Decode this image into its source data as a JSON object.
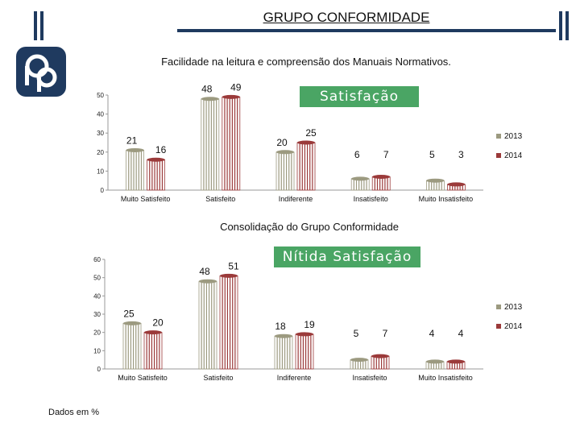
{
  "header": {
    "title": "GRUPO CONFORMIDADE",
    "logo_icon": "pp-logo-icon",
    "colors": {
      "brand": "#1f3a5f",
      "accent": "#4aa564"
    }
  },
  "chart_data": [
    {
      "type": "bar",
      "title": "Facilidade na leitura e compreensão dos Manuais Normativos.",
      "banner": "Satisfação",
      "categories": [
        "Muito Satisfeito",
        "Satisfeito",
        "Indiferente",
        "Insatisfeito",
        "Muito Insatisfeito"
      ],
      "series": [
        {
          "name": "2013",
          "color": "#9c9a80",
          "values": [
            21,
            48,
            20,
            6,
            5
          ]
        },
        {
          "name": "2014",
          "color": "#9b3a3a",
          "values": [
            16,
            49,
            25,
            7,
            3
          ]
        }
      ],
      "yticks": [
        0,
        10,
        20,
        30,
        40,
        50
      ],
      "ylim": [
        0,
        50
      ],
      "legend": "right",
      "xlabel": "",
      "ylabel": ""
    },
    {
      "type": "bar",
      "title": "Consolidação do Grupo Conformidade",
      "banner": "Nítida Satisfação",
      "categories": [
        "Muito Satisfeito",
        "Satisfeito",
        "Indiferente",
        "Insatisfeito",
        "Muito Insatisfeito"
      ],
      "series": [
        {
          "name": "2013",
          "color": "#9c9a80",
          "values": [
            25,
            48,
            18,
            5,
            4
          ]
        },
        {
          "name": "2014",
          "color": "#9b3a3a",
          "values": [
            20,
            51,
            19,
            7,
            4
          ]
        }
      ],
      "yticks": [
        0,
        10,
        20,
        30,
        40,
        50,
        60
      ],
      "ylim": [
        0,
        60
      ],
      "legend": "right",
      "xlabel": "",
      "ylabel": ""
    }
  ],
  "footnote": "Dados em %"
}
